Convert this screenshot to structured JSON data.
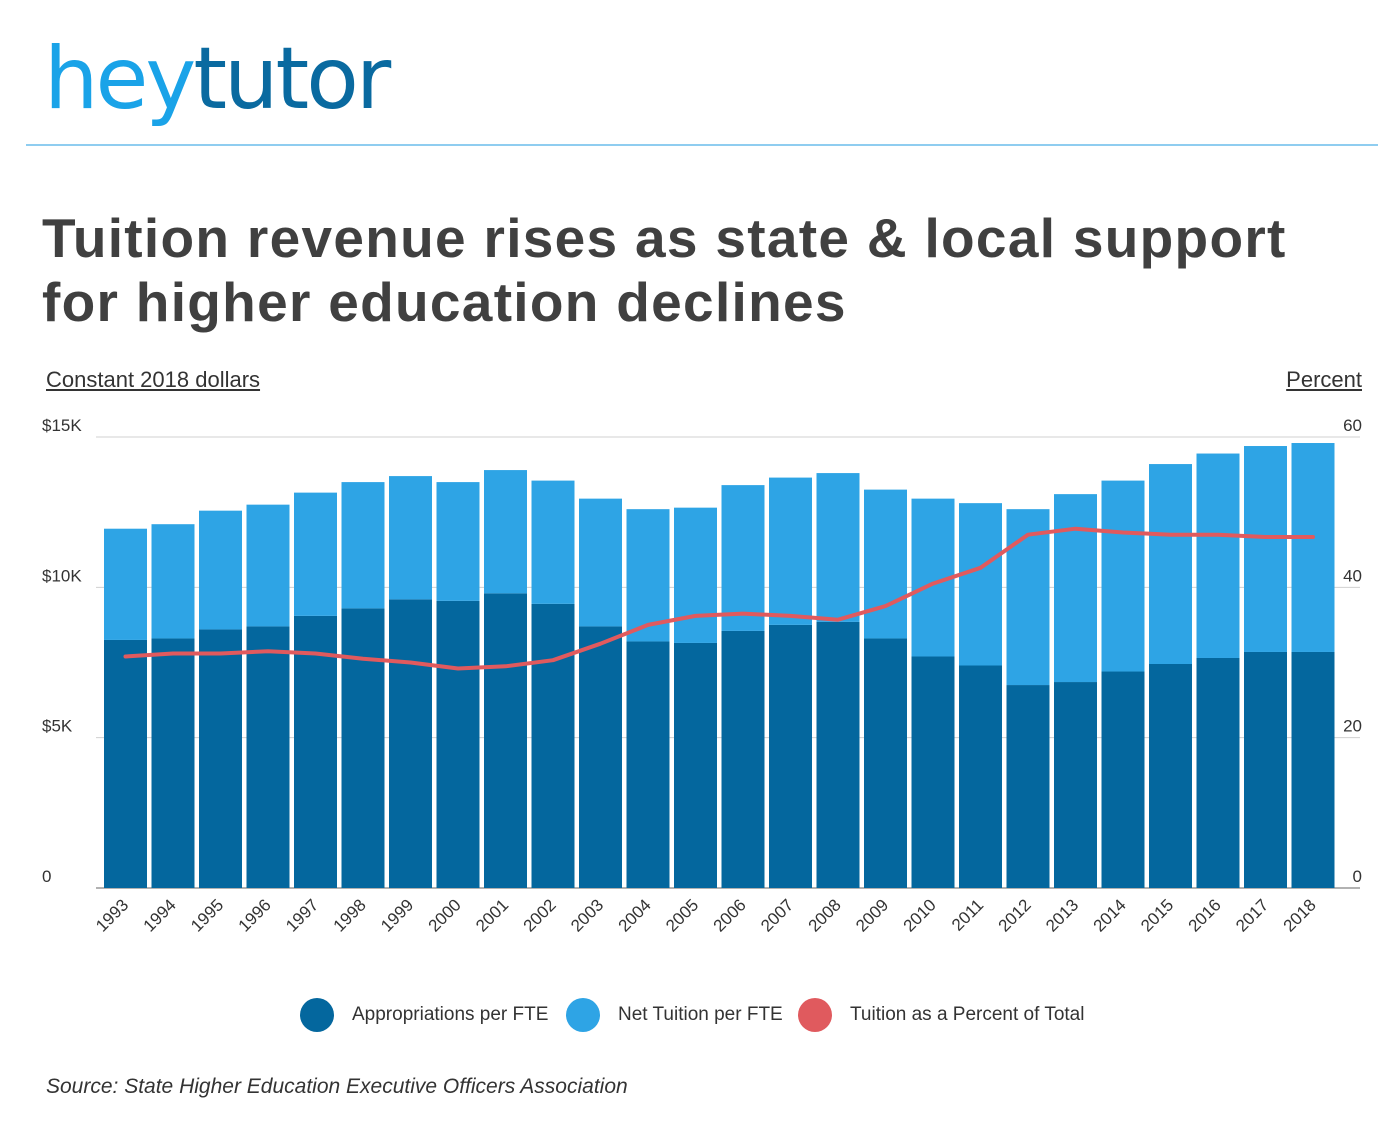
{
  "logo": {
    "part1": "hey",
    "part2": "tutor"
  },
  "title": "Tuition revenue rises as state & local support for higher education declines",
  "left_axis_title": "Constant 2018 dollars",
  "right_axis_title": "Percent",
  "source": "Source: State Higher Education Executive Officers Association",
  "colors": {
    "appropriations": "#04679e",
    "tuition": "#2ea4e5",
    "percent": "#e05a5e",
    "grid": "#d0d0d0"
  },
  "legend": [
    {
      "label": "Appropriations per FTE",
      "color": "#04679e"
    },
    {
      "label": "Net Tuition per FTE",
      "color": "#2ea4e5"
    },
    {
      "label": "Tuition as a Percent of Total",
      "color": "#e05a5e"
    }
  ],
  "chart_data": {
    "type": "bar",
    "stacked": true,
    "categories": [
      "1993",
      "1994",
      "1995",
      "1996",
      "1997",
      "1998",
      "1999",
      "2000",
      "2001",
      "2002",
      "2003",
      "2004",
      "2005",
      "2006",
      "2007",
      "2008",
      "2009",
      "2010",
      "2011",
      "2012",
      "2013",
      "2014",
      "2015",
      "2016",
      "2017",
      "2018"
    ],
    "series": [
      {
        "name": "Appropriations per FTE",
        "axis": "left",
        "values": [
          8250,
          8300,
          8600,
          8700,
          9050,
          9300,
          9600,
          9550,
          9800,
          9450,
          8700,
          8200,
          8150,
          8550,
          8750,
          8850,
          8300,
          7700,
          7400,
          6750,
          6850,
          7200,
          7450,
          7650,
          7850,
          7850
        ]
      },
      {
        "name": "Net Tuition per FTE",
        "axis": "left",
        "values": [
          3700,
          3800,
          3950,
          4050,
          4100,
          4200,
          4100,
          3950,
          4100,
          4100,
          4250,
          4400,
          4500,
          4850,
          4900,
          4950,
          4950,
          5250,
          5400,
          5850,
          6250,
          6350,
          6650,
          6800,
          6850,
          6950
        ]
      },
      {
        "name": "Tuition as a Percent of Total",
        "axis": "right",
        "type": "line",
        "values": [
          30.8,
          31.2,
          31.2,
          31.5,
          31.2,
          30.5,
          30.0,
          29.2,
          29.5,
          30.3,
          32.5,
          35.0,
          36.2,
          36.5,
          36.2,
          35.7,
          37.5,
          40.5,
          42.6,
          47.0,
          47.8,
          47.3,
          47.0,
          47.0,
          46.7,
          46.7
        ]
      }
    ],
    "y_left": {
      "ticks": [
        "0",
        "$5K",
        "$10K",
        "$15K"
      ],
      "ylim": [
        0,
        15000
      ]
    },
    "y_right": {
      "ticks": [
        "0",
        "20",
        "40",
        "60"
      ],
      "ylim": [
        0,
        60
      ]
    },
    "grid": true,
    "legend_position": "bottom"
  }
}
